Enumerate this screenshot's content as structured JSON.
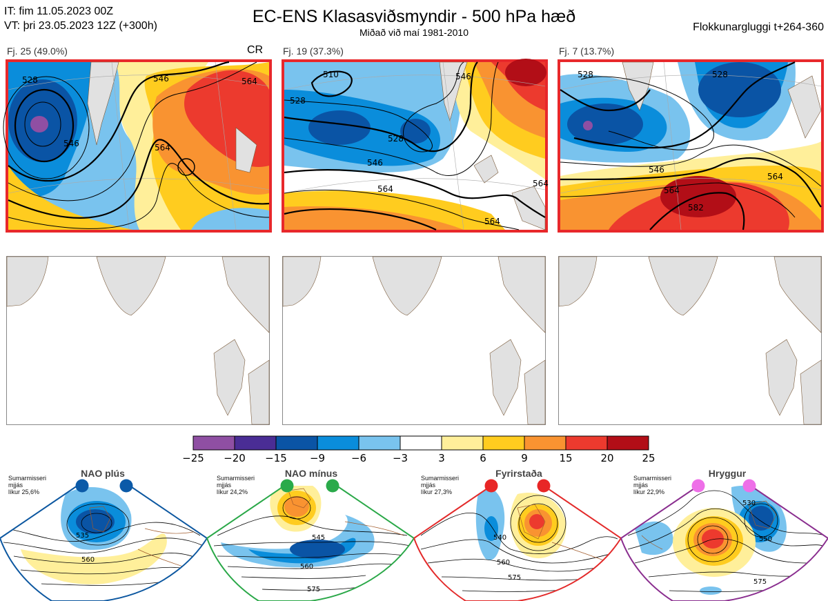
{
  "header": {
    "it_line": "IT: fim 11.05.2023 00Z",
    "vt_line": "VT: þri 23.05.2023 12Z  (+300h)",
    "title": "EC-ENS Klasasviðsmyndir - 500 hPa hæð",
    "subtitle": "Miðað við maí 1981-2010",
    "window": "Flokkunargluggi t+264-360"
  },
  "clusters": [
    {
      "label": "Fj. 25 (49.0%)",
      "badge": "CR",
      "contours": [
        "528",
        "546",
        "564",
        "564",
        "546"
      ]
    },
    {
      "label": "Fj. 19 (37.3%)",
      "contours": [
        "510",
        "528",
        "546",
        "564",
        "546",
        "528",
        "564",
        "564"
      ]
    },
    {
      "label": "Fj. 7 (13.7%)",
      "contours": [
        "528",
        "546",
        "564",
        "582",
        "564",
        "528"
      ]
    }
  ],
  "colorbar": {
    "ticks": [
      "−25",
      "−20",
      "−15",
      "−9",
      "−6",
      "−3",
      "3",
      "6",
      "9",
      "15",
      "20",
      "25"
    ],
    "colors": [
      "#8f4fa3",
      "#4a2d95",
      "#0a54a5",
      "#0a8ddb",
      "#79c3ee",
      "#ffffff",
      "#ffef9a",
      "#ffcc1f",
      "#f99331",
      "#ec3a2e",
      "#b20e17"
    ]
  },
  "regimes": [
    {
      "title": "NAO plús",
      "note": [
        "Sumarmisseri",
        "mjjás",
        "líkur 25,6%"
      ],
      "dot_color": "#0b5aa8",
      "frame_color": "#0c57a0",
      "contours": [
        "535",
        "560"
      ]
    },
    {
      "title": "NAO mínus",
      "note": [
        "Sumarmisseri",
        "mjjás",
        "líkur 24,2%"
      ],
      "dot_color": "#2aaa4a",
      "frame_color": "#2aa848",
      "contours": [
        "545",
        "560",
        "575"
      ]
    },
    {
      "title": "Fyrirstaða",
      "note": [
        "Sumarmisseri",
        "mjjás",
        "líkur 27,3%"
      ],
      "dot_color": "#e82626",
      "frame_color": "#e32a2a",
      "contours": [
        "540",
        "560",
        "575"
      ]
    },
    {
      "title": "Hryggur",
      "note": [
        "Sumarmisseri",
        "mjjás",
        "líkur 22,9%"
      ],
      "dot_color": "#ee6fe8",
      "frame_color": "#8a2e8f",
      "contours": [
        "530",
        "550",
        "575"
      ]
    }
  ]
}
